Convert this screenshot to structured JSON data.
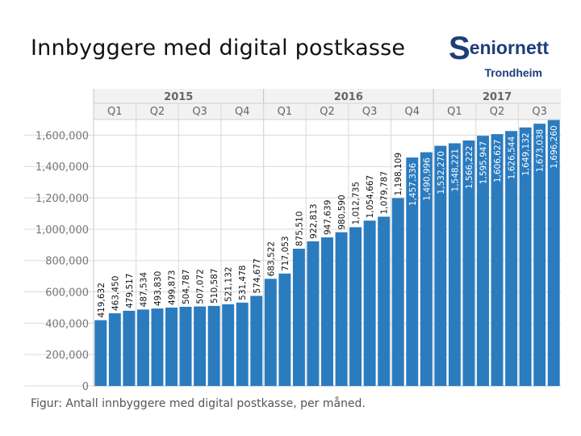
{
  "title": "Innbyggere med digital postkasse",
  "logo": {
    "brand_initial": "S",
    "brand_rest": "eniornett",
    "city": "Trondheim"
  },
  "caption": "Figur: Antall innbyggere med digital postkasse, per måned.",
  "colors": {
    "bar": "#2b7bbf",
    "grid": "#d9d9d9",
    "header_bg": "#f2f2f2",
    "axis_text": "#777777"
  },
  "chart_data": {
    "type": "bar",
    "title": "",
    "xlabel": "",
    "ylabel": "",
    "ylim": [
      0,
      1700000
    ],
    "y_ticks": [
      0,
      200000,
      400000,
      600000,
      800000,
      1000000,
      1200000,
      1400000,
      1600000
    ],
    "y_tick_labels": [
      "0",
      "200,000",
      "400,000",
      "600,000",
      "800,000",
      "1,000,000",
      "1,200,000",
      "1,400,000",
      "1,600,000"
    ],
    "years": [
      {
        "label": "2015",
        "months": 12
      },
      {
        "label": "2016",
        "months": 12
      },
      {
        "label": "2017",
        "months": 9
      }
    ],
    "quarters": [
      "Q1",
      "Q2",
      "Q3",
      "Q4",
      "Q1",
      "Q2",
      "Q3",
      "Q4",
      "Q1",
      "Q2",
      "Q3"
    ],
    "values": [
      419632,
      463450,
      479517,
      487534,
      493830,
      499873,
      504787,
      507072,
      510587,
      521132,
      531478,
      574677,
      683522,
      717053,
      875510,
      922813,
      947639,
      980590,
      1012735,
      1054667,
      1079787,
      1198109,
      1457336,
      1490996,
      1532270,
      1548221,
      1566222,
      1595947,
      1606627,
      1626544,
      1649132,
      1673038,
      1696260
    ],
    "value_labels": [
      "419,632",
      "463,450",
      "479,517",
      "487,534",
      "493,830",
      "499,873",
      "504,787",
      "507,072",
      "510,587",
      "521,132",
      "531,478",
      "574,677",
      "683,522",
      "717,053",
      "875,510",
      "922,813",
      "947,639",
      "980,590",
      "1,012,735",
      "1,054,667",
      "1,079,787",
      "1,198,109",
      "1,457,336",
      "1,490,996",
      "1,532,270",
      "1,548,221",
      "1,566,222",
      "1,595,947",
      "1,606,627",
      "1,626,544",
      "1,649,132",
      "1,673,038",
      "1,696,260"
    ],
    "grid": true,
    "legend": "none"
  }
}
